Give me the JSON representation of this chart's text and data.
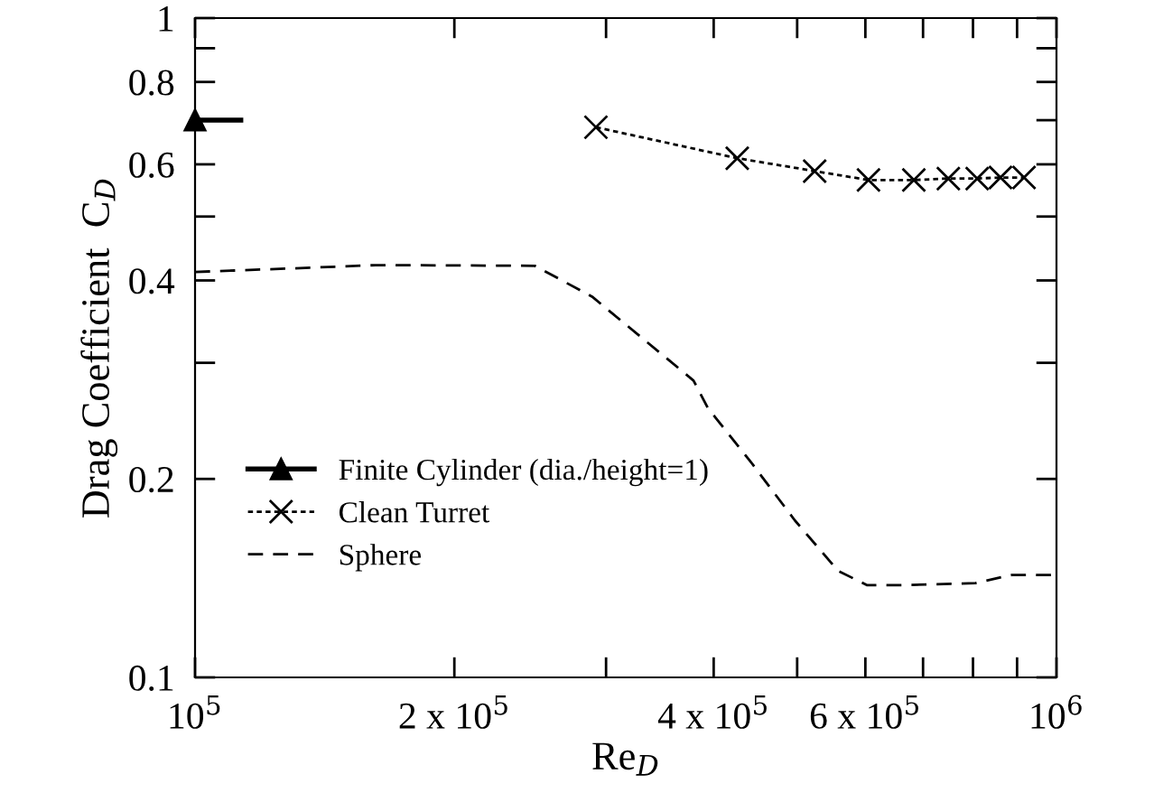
{
  "chart_data": {
    "type": "line",
    "xlabel": "Re$_{D}$",
    "ylabel": "Drag Coefficient  C$_{D}$",
    "log": "xy",
    "grid": false,
    "legend": "bottom left",
    "xlim": [
      100000,
      1000000
    ],
    "ylim": [
      0.1,
      1
    ],
    "xticks": [
      {
        "value": 100000,
        "label": "10$^{5}$"
      },
      {
        "value": 200000,
        "label": "2 x 10$^{5}$"
      },
      {
        "value": 300000,
        "label": null
      },
      {
        "value": 400000,
        "label": "4 x 10$^{5}$"
      },
      {
        "value": 500000,
        "label": null
      },
      {
        "value": 600000,
        "label": "6 x 10$^{5}$"
      },
      {
        "value": 700000,
        "label": null
      },
      {
        "value": 800000,
        "label": null
      },
      {
        "value": 900000,
        "label": null
      },
      {
        "value": 1000000,
        "label": "10$^{6}$"
      }
    ],
    "yticks": [
      0.1,
      0.2,
      {
        "value": 0.3,
        "label": null
      },
      0.4,
      {
        "value": 0.5,
        "label": null
      },
      0.6,
      {
        "value": 0.7,
        "label": null
      },
      0.8,
      {
        "value": 0.9,
        "label": null
      },
      1
    ],
    "series": [
      {
        "name": "Finite Cylinder (dia./height=1)",
        "color": "#000000",
        "marker": "triangle",
        "line_style": "solid",
        "x": [
          100000,
          113000
        ],
        "values": [
          0.7,
          0.7
        ]
      },
      {
        "name": "Clean Turret",
        "color": "#000000",
        "marker": "cross",
        "line_style": "dotted",
        "x": [
          292000,
          426000,
          524000,
          605000,
          683000,
          749000,
          809000,
          861000,
          917000
        ],
        "values": [
          0.683,
          0.613,
          0.586,
          0.568,
          0.568,
          0.571,
          0.571,
          0.573,
          0.573
        ]
      },
      {
        "name": "Sphere",
        "color": "#000000",
        "marker": "none",
        "line_style": "dashed",
        "x": [
          100000,
          128500,
          162000,
          248000,
          289000,
          379000,
          394000,
          442000,
          497000,
          558000,
          603000,
          664000,
          805000,
          887000,
          995000
        ],
        "values": [
          0.412,
          0.417,
          0.422,
          0.421,
          0.378,
          0.282,
          0.256,
          0.212,
          0.173,
          0.145,
          0.138,
          0.138,
          0.139,
          0.143,
          0.143
        ]
      }
    ]
  }
}
